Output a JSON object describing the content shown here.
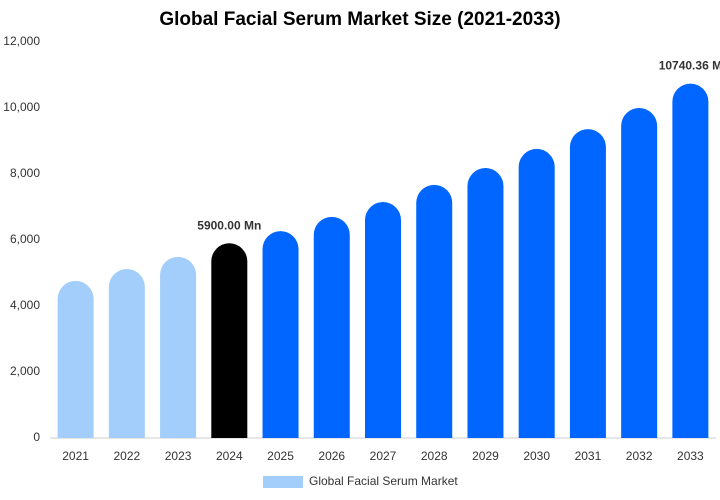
{
  "chart_data": {
    "type": "bar",
    "title": "Global Facial Serum Market Size (2021-2033)",
    "categories": [
      "2021",
      "2022",
      "2023",
      "2024",
      "2025",
      "2026",
      "2027",
      "2028",
      "2029",
      "2030",
      "2031",
      "2032",
      "2033"
    ],
    "series": [
      {
        "name": "Global Facial Serum Market",
        "color": "#a3cdfa",
        "colors": [
          "#a3cdfa",
          "#a3cdfa",
          "#a3cdfa",
          "#000000",
          "#0066ff",
          "#0066ff",
          "#0066ff",
          "#0066ff",
          "#0066ff",
          "#0066ff",
          "#0066ff",
          "#0066ff",
          "#0066ff"
        ],
        "values": [
          4760,
          5120,
          5490,
          5900,
          6270,
          6700,
          7150,
          7670,
          8180,
          8760,
          9360,
          10000,
          10740.36
        ],
        "value_labels": [
          null,
          null,
          null,
          "5900.00 Mn",
          null,
          null,
          null,
          null,
          null,
          null,
          null,
          null,
          "10740.36 M"
        ]
      }
    ],
    "ylim": [
      0,
      12000
    ],
    "yticks": [
      0,
      {
        "value": 2000,
        "label": "2,000"
      },
      {
        "value": 4000,
        "label": "4,000"
      },
      {
        "value": 6000,
        "label": "6,000"
      },
      {
        "value": 8000,
        "label": "8,000"
      },
      {
        "value": 10000,
        "label": "10,000"
      },
      {
        "value": 12000,
        "label": "12,000"
      }
    ],
    "grid": false,
    "legend": "bottom"
  }
}
